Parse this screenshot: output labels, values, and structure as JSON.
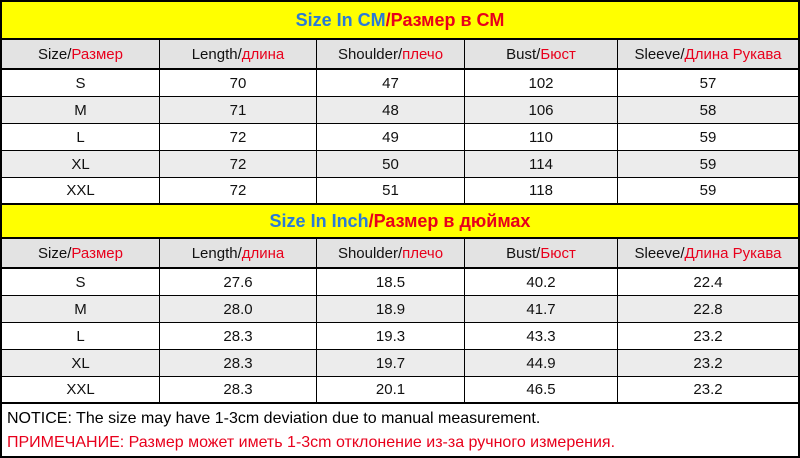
{
  "sections": [
    {
      "title": {
        "primary": "Size In CM",
        "secondary": "/Размер в СМ"
      },
      "header": [
        {
          "en": "Size/",
          "ru": "Размер"
        },
        {
          "en": "Length/",
          "ru": "длина"
        },
        {
          "en": "Shoulder/",
          "ru": "плечо"
        },
        {
          "en": "Bust/",
          "ru": "Бюст"
        },
        {
          "en": "Sleeve/",
          "ru": "Длина Рукава"
        }
      ],
      "rows": [
        [
          "S",
          "70",
          "47",
          "102",
          "57"
        ],
        [
          "M",
          "71",
          "48",
          "106",
          "58"
        ],
        [
          "L",
          "72",
          "49",
          "110",
          "59"
        ],
        [
          "XL",
          "72",
          "50",
          "114",
          "59"
        ],
        [
          "XXL",
          "72",
          "51",
          "118",
          "59"
        ]
      ]
    },
    {
      "title": {
        "primary": "Size In Inch",
        "secondary": "/Размер в дюймах"
      },
      "header": [
        {
          "en": "Size/",
          "ru": "Размер"
        },
        {
          "en": "Length/",
          "ru": "длина"
        },
        {
          "en": "Shoulder/",
          "ru": "плечо"
        },
        {
          "en": "Bust/",
          "ru": "Бюст"
        },
        {
          "en": "Sleeve/",
          "ru": "Длина Рукава"
        }
      ],
      "rows": [
        [
          "S",
          "27.6",
          "18.5",
          "40.2",
          "22.4"
        ],
        [
          "M",
          "28.0",
          "18.9",
          "41.7",
          "22.8"
        ],
        [
          "L",
          "28.3",
          "19.3",
          "43.3",
          "23.2"
        ],
        [
          "XL",
          "28.3",
          "19.7",
          "44.9",
          "23.2"
        ],
        [
          "XXL",
          "28.3",
          "20.1",
          "46.5",
          "23.2"
        ]
      ]
    }
  ],
  "notice": {
    "en": "NOTICE:  The size may have 1-3cm deviation due to manual measurement.",
    "ru": "ПРИМЕЧАНИЕ: Размер может иметь 1-3cm отклонение из-за ручного измерения."
  }
}
